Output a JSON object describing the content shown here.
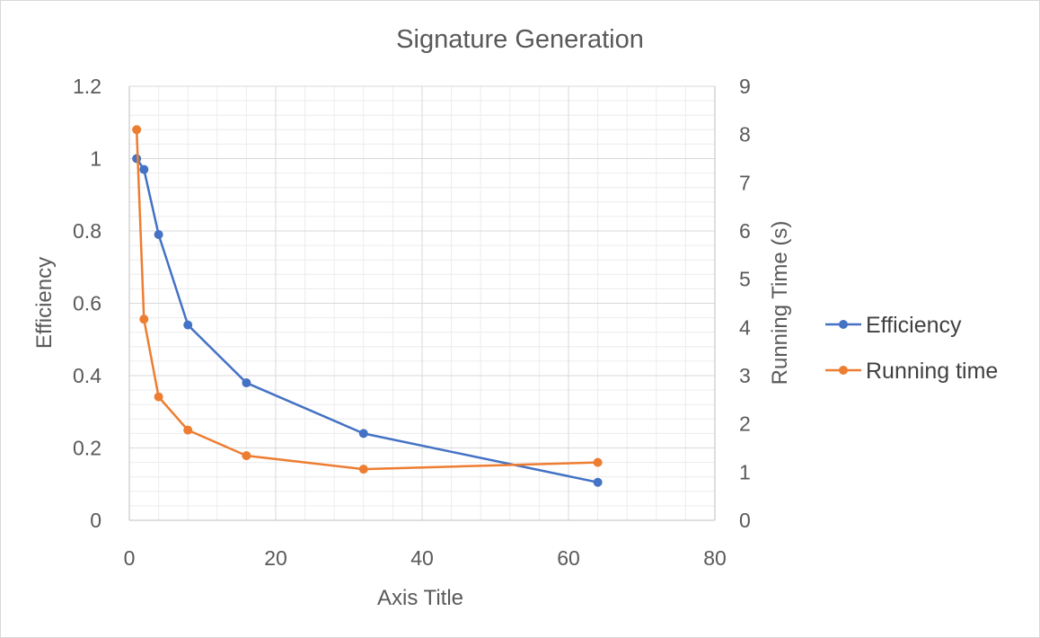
{
  "chart_data": {
    "type": "line",
    "title": "Signature Generation",
    "xlabel": "Axis Title",
    "ylabel": "Efficiency",
    "y2label": "Running Time (s)",
    "xlim": [
      0,
      80
    ],
    "ylim": [
      0,
      1.2
    ],
    "y2lim": [
      0,
      9
    ],
    "x_ticks": [
      "0",
      "20",
      "40",
      "60",
      "80"
    ],
    "y_ticks": [
      "0",
      "0.2",
      "0.4",
      "0.6",
      "0.8",
      "1",
      "1.2"
    ],
    "y2_ticks": [
      "0",
      "1",
      "2",
      "3",
      "4",
      "5",
      "6",
      "7",
      "8",
      "9"
    ],
    "grid": true,
    "legend_position": "right",
    "series": [
      {
        "name": "Efficiency",
        "axis": "left",
        "color": "#4472C4",
        "x": [
          1,
          2,
          4,
          8,
          16,
          32,
          64
        ],
        "values": [
          1.0,
          0.97,
          0.79,
          0.54,
          0.38,
          0.24,
          0.105
        ]
      },
      {
        "name": "Running time",
        "axis": "right",
        "color": "#ED7D31",
        "x": [
          1,
          2,
          4,
          8,
          16,
          32,
          64
        ],
        "values": [
          8.1,
          4.17,
          2.56,
          1.87,
          1.34,
          1.06,
          1.2
        ]
      }
    ]
  }
}
